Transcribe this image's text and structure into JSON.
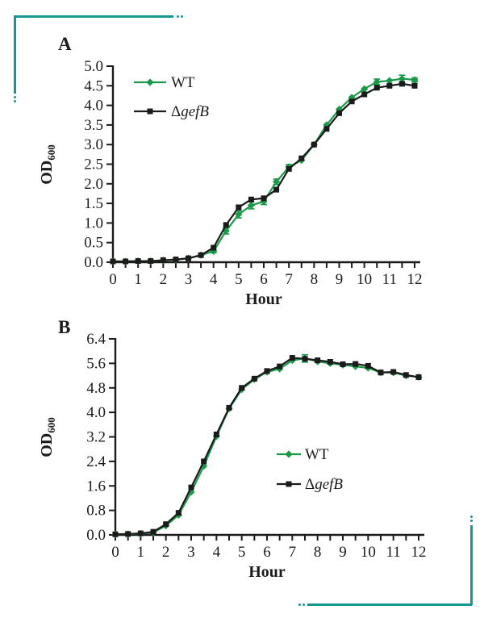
{
  "page": {
    "background": "#ffffff",
    "crop_mark_color": "#159794"
  },
  "chart_data": [
    {
      "type": "line",
      "panel_label": "A",
      "xlabel": "Hour",
      "ylabel": "OD",
      "ylabel_subscript": "600",
      "xlim": [
        0,
        12
      ],
      "ylim": [
        0,
        5.0
      ],
      "x_minor_step": 0.5,
      "xticks": [
        0,
        1,
        2,
        3,
        4,
        5,
        6,
        7,
        8,
        9,
        10,
        11,
        12
      ],
      "yticks": [
        0.0,
        0.5,
        1.0,
        1.5,
        2.0,
        2.5,
        3.0,
        3.5,
        4.0,
        4.5,
        5.0
      ],
      "ytick_decimals": 1,
      "grid": false,
      "legend_position": "upper-left-inside",
      "x": [
        0,
        0.5,
        1,
        1.5,
        2,
        2.5,
        3,
        3.5,
        4,
        4.5,
        5,
        5.5,
        6,
        6.5,
        7,
        7.5,
        8,
        8.5,
        9,
        9.5,
        10,
        10.5,
        11,
        11.5,
        12
      ],
      "series": [
        {
          "name": "WT",
          "color": "#1a9a49",
          "marker": "diamond",
          "values": [
            0.02,
            0.02,
            0.03,
            0.03,
            0.05,
            0.06,
            0.1,
            0.18,
            0.28,
            0.8,
            1.22,
            1.45,
            1.55,
            2.05,
            2.43,
            2.6,
            3.0,
            3.5,
            3.9,
            4.2,
            4.42,
            4.6,
            4.63,
            4.68,
            4.65
          ],
          "errors": [
            0,
            0,
            0,
            0,
            0,
            0,
            0,
            0,
            0.04,
            0.08,
            0.09,
            0.09,
            0.08,
            0.07,
            0.06,
            0,
            0,
            0,
            0,
            0,
            0,
            0.07,
            0,
            0.09,
            0.05
          ]
        },
        {
          "name": "ΔgefB",
          "color": "#1b1b1b",
          "marker": "square",
          "values": [
            0.02,
            0.02,
            0.03,
            0.03,
            0.05,
            0.07,
            0.1,
            0.18,
            0.37,
            0.95,
            1.4,
            1.6,
            1.63,
            1.85,
            2.38,
            2.65,
            3.0,
            3.4,
            3.8,
            4.1,
            4.28,
            4.45,
            4.5,
            4.55,
            4.5
          ],
          "errors": [
            0,
            0,
            0,
            0,
            0,
            0,
            0,
            0,
            0,
            0,
            0,
            0,
            0,
            0,
            0,
            0,
            0,
            0,
            0,
            0,
            0,
            0,
            0,
            0,
            0
          ]
        }
      ]
    },
    {
      "type": "line",
      "panel_label": "B",
      "xlabel": "Hour",
      "ylabel": "OD",
      "ylabel_subscript": "600",
      "xlim": [
        0,
        12
      ],
      "ylim": [
        0,
        6.4
      ],
      "x_minor_step": 0.5,
      "xticks": [
        0,
        1,
        2,
        3,
        4,
        5,
        6,
        7,
        8,
        9,
        10,
        11,
        12
      ],
      "yticks": [
        0.0,
        0.8,
        1.6,
        2.4,
        3.2,
        4.0,
        4.8,
        5.6,
        6.4
      ],
      "ytick_decimals": 1,
      "grid": false,
      "legend_position": "middle-right-inside",
      "x": [
        0,
        0.5,
        1,
        1.5,
        2,
        2.5,
        3,
        3.5,
        4,
        4.5,
        5,
        5.5,
        6,
        6.5,
        7,
        7.5,
        8,
        8.5,
        9,
        9.5,
        10,
        10.5,
        11,
        11.5,
        12
      ],
      "series": [
        {
          "name": "WT",
          "color": "#1a9a49",
          "marker": "diamond",
          "values": [
            0.02,
            0.03,
            0.04,
            0.08,
            0.3,
            0.65,
            1.4,
            2.25,
            3.22,
            4.12,
            4.75,
            5.08,
            5.32,
            5.42,
            5.7,
            5.76,
            5.66,
            5.6,
            5.55,
            5.5,
            5.45,
            5.3,
            5.3,
            5.2,
            5.15
          ],
          "errors": [
            0,
            0,
            0,
            0,
            0,
            0,
            0,
            0,
            0,
            0,
            0,
            0,
            0,
            0,
            0,
            0.12,
            0,
            0,
            0,
            0,
            0,
            0,
            0,
            0,
            0
          ]
        },
        {
          "name": "ΔgefB",
          "color": "#1b1b1b",
          "marker": "square",
          "values": [
            0.02,
            0.03,
            0.05,
            0.1,
            0.35,
            0.72,
            1.55,
            2.4,
            3.28,
            4.15,
            4.8,
            5.1,
            5.35,
            5.5,
            5.78,
            5.75,
            5.7,
            5.65,
            5.57,
            5.58,
            5.52,
            5.3,
            5.32,
            5.22,
            5.15
          ],
          "errors": [
            0,
            0,
            0,
            0,
            0,
            0,
            0,
            0,
            0,
            0,
            0,
            0,
            0,
            0,
            0,
            0,
            0,
            0,
            0,
            0,
            0,
            0,
            0,
            0,
            0
          ]
        }
      ]
    }
  ]
}
